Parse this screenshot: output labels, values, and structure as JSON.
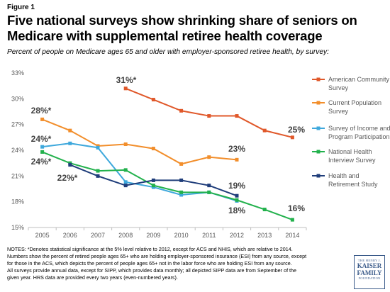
{
  "figure_label": "Figure 1",
  "title": "Five national surveys show shrinking share of seniors on Medicare with supplemental retiree health coverage",
  "subtitle": "Percent of people on Medicare ages 65 and older with employer-sponsored retiree health, by survey:",
  "notes": [
    "NOTES: *Denotes statistical significance at the 5% level relative to 2012, except for ACS and NHIS, which are relative to 2014.",
    "Numbers show the percent of retired people ages 65+ who are holding employer-sponsored insurance (ESI) from any source, except",
    "for those in the ACS, which depicts the percent of people ages 65+ not in the labor force who are holding ESI from any source.",
    "All surveys provide annual data, except for SIPP, which provides data monthly; all depicted SIPP data are from September of the",
    "given year. HRS data are provided every two years (even-numbered years)."
  ],
  "logo": {
    "line1": "THE HENRY J.",
    "line2a": "KAISER",
    "line2b": "FAMILY",
    "line3": "FOUNDATION"
  },
  "chart_data": {
    "type": "line",
    "x": [
      "2005",
      "2006",
      "2007",
      "2008",
      "2009",
      "2010",
      "2011",
      "2012",
      "2013",
      "2014"
    ],
    "ylim": [
      15,
      33
    ],
    "yticks": [
      "15%",
      "18%",
      "21%",
      "24%",
      "27%",
      "30%",
      "33%"
    ],
    "grid": false,
    "legend_position": "right",
    "series": [
      {
        "name": "American Community Survey",
        "color": "#e0582a",
        "values": [
          null,
          null,
          null,
          31.2,
          29.9,
          28.6,
          28.0,
          28.0,
          26.3,
          25.5
        ]
      },
      {
        "name": "Current Population Survey",
        "color": "#f28e2b",
        "values": [
          27.6,
          26.3,
          24.5,
          24.7,
          24.2,
          22.4,
          23.2,
          22.9,
          null,
          null
        ]
      },
      {
        "name": "Survey of Income and Program Participation",
        "color": "#3ea8dc",
        "values": [
          24.4,
          24.8,
          24.3,
          20.3,
          19.7,
          18.8,
          19.1,
          18.1,
          null,
          null
        ]
      },
      {
        "name": "National Health Interview Survey",
        "color": "#22b14c",
        "values": [
          23.8,
          22.5,
          21.6,
          21.7,
          19.9,
          19.1,
          19.1,
          18.2,
          17.1,
          15.9
        ]
      },
      {
        "name": "Health and Retirement Study",
        "color": "#1f3d7a",
        "values": [
          null,
          22.3,
          21.0,
          19.9,
          20.5,
          20.5,
          19.9,
          18.7,
          null,
          null
        ]
      }
    ],
    "annotations": [
      "31%*",
      "28%*",
      "24%*",
      "24%*",
      "22%*",
      "23%",
      "19%",
      "18%",
      "25%",
      "16%"
    ]
  }
}
